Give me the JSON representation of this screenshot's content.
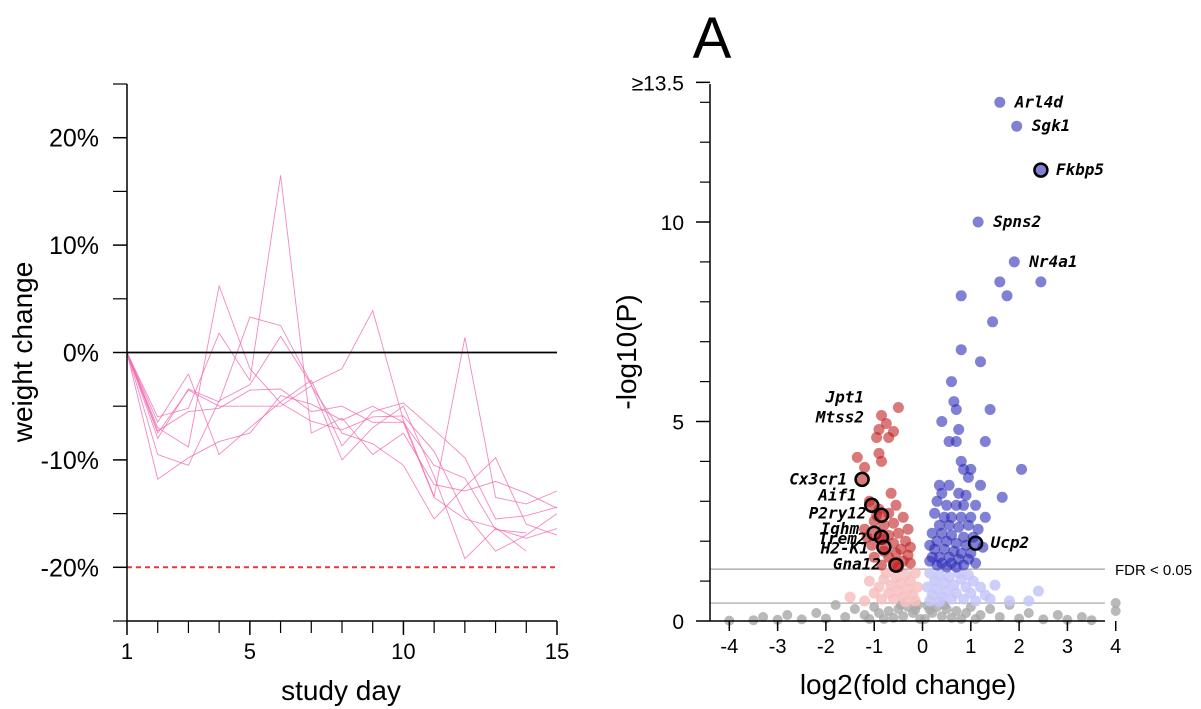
{
  "panel_label": "A",
  "chart_data": [
    {
      "type": "line",
      "xlabel": "study day",
      "ylabel": "weight change",
      "xlim": [
        1,
        15
      ],
      "ylim": [
        -25,
        25
      ],
      "x_ticks": [
        1,
        5,
        10,
        15
      ],
      "x_minor_ticks": [
        2,
        3,
        4,
        6,
        7,
        8,
        9,
        11,
        12,
        13,
        14
      ],
      "y_ticks": [
        {
          "value": 20,
          "label": "20%"
        },
        {
          "value": 10,
          "label": "10%"
        },
        {
          "value": 0,
          "label": "0%"
        },
        {
          "value": -10,
          "label": "-10%"
        },
        {
          "value": -20,
          "label": "-20%"
        }
      ],
      "y_minor_ticks": [
        25,
        15,
        5,
        -5,
        -15,
        -25
      ],
      "reference_lines": [
        {
          "value": 0,
          "color": "#000000",
          "style": "solid"
        },
        {
          "value": -20,
          "color": "#e53935",
          "style": "dashed"
        }
      ],
      "series_color": "#f06ab2",
      "x": [
        1,
        2,
        3,
        4,
        5,
        6,
        7,
        8,
        9,
        10,
        11,
        12,
        13,
        14,
        15
      ],
      "series": [
        {
          "values": [
            0,
            -11.8,
            -9.8,
            -8.3,
            -7.5,
            -4.0,
            -4.8,
            -6.3,
            -5.0,
            -6.5,
            -10.5,
            -11.7,
            -16.5,
            -16.8,
            null
          ]
        },
        {
          "values": [
            0,
            -7.0,
            -8.8,
            6.2,
            -1.5,
            -4.7,
            -6.4,
            -7.2,
            -6.0,
            -5.9,
            -9.2,
            -15.0,
            -18.5,
            -17.0,
            -15.0
          ]
        },
        {
          "values": [
            0,
            -9.5,
            -10.5,
            -4.5,
            -3.0,
            1.5,
            -3.0,
            -10.0,
            -7.0,
            -5.0,
            -11.5,
            -19.2,
            -16.4,
            -17.3,
            -16.4
          ]
        },
        {
          "values": [
            0,
            -6.5,
            -2.0,
            -9.5,
            -7.0,
            -4.6,
            -2.6,
            -8.7,
            -5.5,
            -4.7,
            -7.2,
            -9.8,
            -15.5,
            -15.2,
            -14.4
          ]
        },
        {
          "values": [
            0,
            -8.0,
            -3.4,
            -4.6,
            3.3,
            2.5,
            -2.9,
            -1.5,
            3.9,
            -6.3,
            -13.4,
            1.4,
            -13.5,
            -14.1,
            -12.9
          ]
        },
        {
          "values": [
            0,
            -6.0,
            -5.2,
            1.8,
            -2.6,
            16.5,
            -7.5,
            -6.1,
            -9.5,
            -7.5,
            -12.3,
            -12.9,
            -12.0,
            -13.1,
            -14.5
          ]
        },
        {
          "values": [
            0,
            -7.5,
            -3.5,
            -5.0,
            -5.0,
            -5.0,
            -3.1,
            -7.5,
            -8.5,
            -10.5,
            -15.5,
            -12.5,
            -9.8,
            -16.0,
            -17.0
          ]
        },
        {
          "values": [
            0,
            -7.3,
            -5.5,
            -5.2,
            -3.5,
            -3.4,
            -5.5,
            -5.0,
            -6.5,
            -6.5,
            -13.5,
            -15.5,
            -16.3,
            -18.5,
            null
          ]
        }
      ]
    },
    {
      "type": "scatter",
      "xlabel": "log2(fold change)",
      "ylabel": "-log10(P)",
      "xlim": [
        -4.4,
        4.2
      ],
      "ylim": [
        0,
        13.8
      ],
      "x_ticks": [
        -4,
        -3,
        -2,
        -1,
        0,
        1,
        2,
        3,
        4
      ],
      "y_ticks": [
        {
          "value": 0,
          "label": "0"
        },
        {
          "value": 5,
          "label": "5"
        },
        {
          "value": 10,
          "label": "10"
        },
        {
          "value": 13.5,
          "label": "≥13.5"
        }
      ],
      "y_minor_ticks": [
        1,
        2,
        3,
        4,
        6,
        7,
        8,
        9,
        11,
        12,
        13
      ],
      "threshold_lines": [
        {
          "value": 1.3,
          "label": "FDR < 0.05",
          "color": "#a0a0a0"
        },
        {
          "value": 0.45,
          "label": "",
          "color": "#a0a0a0"
        }
      ],
      "colors": {
        "up_significant": "#2b2bb8",
        "down_significant": "#bf1f1f",
        "up_nominal": "#c4c6f8",
        "down_nominal": "#f7c0c0",
        "not_significant": "#a8a8a8",
        "highlight_ring": "#000000"
      },
      "points_up_significant": [
        [
          1.6,
          13.0
        ],
        [
          1.95,
          12.4
        ],
        [
          1.15,
          10.0
        ],
        [
          1.9,
          9.0
        ],
        [
          2.45,
          8.5
        ],
        [
          1.6,
          8.5
        ],
        [
          1.75,
          8.15
        ],
        [
          0.8,
          8.15
        ],
        [
          1.45,
          7.5
        ],
        [
          0.8,
          6.8
        ],
        [
          1.2,
          6.5
        ],
        [
          0.6,
          6.0
        ],
        [
          0.65,
          5.5
        ],
        [
          0.7,
          5.3
        ],
        [
          1.4,
          5.3
        ],
        [
          0.4,
          5.0
        ],
        [
          0.75,
          4.8
        ],
        [
          0.55,
          4.5
        ],
        [
          0.7,
          4.5
        ],
        [
          1.3,
          4.5
        ],
        [
          0.8,
          4.0
        ],
        [
          0.85,
          3.8
        ],
        [
          1.0,
          3.8
        ],
        [
          2.05,
          3.8
        ],
        [
          0.95,
          3.6
        ],
        [
          0.35,
          3.4
        ],
        [
          0.55,
          3.4
        ],
        [
          1.2,
          3.4
        ],
        [
          0.4,
          3.2
        ],
        [
          0.75,
          3.2
        ],
        [
          0.9,
          3.15
        ],
        [
          1.65,
          3.1
        ],
        [
          0.3,
          3.0
        ],
        [
          0.5,
          2.9
        ],
        [
          0.7,
          2.9
        ],
        [
          0.85,
          2.9
        ],
        [
          1.1,
          2.9
        ],
        [
          0.25,
          2.7
        ],
        [
          0.45,
          2.6
        ],
        [
          0.6,
          2.6
        ],
        [
          0.8,
          2.6
        ],
        [
          1.0,
          2.6
        ],
        [
          1.3,
          2.6
        ],
        [
          0.35,
          2.4
        ],
        [
          0.55,
          2.4
        ],
        [
          0.75,
          2.35
        ],
        [
          0.95,
          2.4
        ],
        [
          1.15,
          2.3
        ],
        [
          0.2,
          2.2
        ],
        [
          0.4,
          2.2
        ],
        [
          0.6,
          2.15
        ],
        [
          0.85,
          2.1
        ],
        [
          1.05,
          2.1
        ],
        [
          0.3,
          2.0
        ],
        [
          0.5,
          2.0
        ],
        [
          0.7,
          1.95
        ],
        [
          0.9,
          1.9
        ],
        [
          1.25,
          1.85
        ],
        [
          0.15,
          1.9
        ],
        [
          0.25,
          1.8
        ],
        [
          0.45,
          1.8
        ],
        [
          0.65,
          1.75
        ],
        [
          0.8,
          1.7
        ],
        [
          1.0,
          1.7
        ],
        [
          0.2,
          1.6
        ],
        [
          0.35,
          1.6
        ],
        [
          0.55,
          1.6
        ],
        [
          0.75,
          1.55
        ],
        [
          0.95,
          1.55
        ],
        [
          0.15,
          1.5
        ],
        [
          0.4,
          1.45
        ],
        [
          0.6,
          1.45
        ],
        [
          0.85,
          1.4
        ],
        [
          1.1,
          1.45
        ],
        [
          0.3,
          1.4
        ],
        [
          0.5,
          1.35
        ],
        [
          0.7,
          1.35
        ]
      ],
      "points_down_significant": [
        [
          -0.5,
          5.35
        ],
        [
          -0.85,
          5.15
        ],
        [
          -0.75,
          4.95
        ],
        [
          -0.9,
          4.8
        ],
        [
          -0.6,
          4.75
        ],
        [
          -0.7,
          4.6
        ],
        [
          -0.95,
          4.6
        ],
        [
          -0.9,
          4.2
        ],
        [
          -1.35,
          4.1
        ],
        [
          -0.85,
          4.0
        ],
        [
          -1.2,
          3.85
        ],
        [
          -0.65,
          3.2
        ],
        [
          -1.1,
          3.0
        ],
        [
          -0.55,
          2.9
        ],
        [
          -0.9,
          2.8
        ],
        [
          -0.7,
          2.7
        ],
        [
          -0.4,
          2.6
        ],
        [
          -1.0,
          2.5
        ],
        [
          -0.6,
          2.45
        ],
        [
          -0.8,
          2.4
        ],
        [
          -0.3,
          2.3
        ],
        [
          -1.2,
          2.3
        ],
        [
          -0.5,
          2.2
        ],
        [
          -0.7,
          2.15
        ],
        [
          -0.9,
          2.1
        ],
        [
          -0.35,
          2.0
        ],
        [
          -0.6,
          1.95
        ],
        [
          -1.05,
          1.9
        ],
        [
          -0.25,
          1.85
        ],
        [
          -0.45,
          1.8
        ],
        [
          -0.8,
          1.75
        ],
        [
          -0.55,
          1.7
        ],
        [
          -0.3,
          1.65
        ],
        [
          -0.7,
          1.6
        ],
        [
          -1.0,
          1.6
        ],
        [
          -0.4,
          1.5
        ],
        [
          -0.6,
          1.45
        ],
        [
          -0.85,
          1.4
        ],
        [
          -0.25,
          1.45
        ],
        [
          -0.5,
          1.35
        ],
        [
          -1.15,
          2.1
        ],
        [
          -0.95,
          2.65
        ]
      ],
      "points_up_nominal": [
        [
          0.15,
          1.2
        ],
        [
          0.35,
          1.15
        ],
        [
          0.55,
          1.1
        ],
        [
          0.8,
          1.05
        ],
        [
          1.05,
          1.0
        ],
        [
          0.25,
          1.0
        ],
        [
          0.45,
          0.95
        ],
        [
          0.65,
          0.9
        ],
        [
          0.9,
          0.85
        ],
        [
          1.2,
          0.85
        ],
        [
          1.5,
          0.9
        ],
        [
          0.1,
          0.85
        ],
        [
          0.3,
          0.8
        ],
        [
          0.5,
          0.75
        ],
        [
          0.7,
          0.7
        ],
        [
          1.0,
          0.7
        ],
        [
          1.3,
          0.65
        ],
        [
          0.2,
          0.65
        ],
        [
          0.4,
          0.6
        ],
        [
          0.6,
          0.55
        ],
        [
          0.85,
          0.55
        ],
        [
          1.1,
          0.5
        ],
        [
          1.8,
          0.5
        ],
        [
          2.2,
          0.5
        ],
        [
          0.15,
          0.5
        ],
        [
          0.35,
          0.48
        ],
        [
          0.95,
          1.15
        ],
        [
          1.4,
          0.55
        ],
        [
          0.75,
          1.2
        ],
        [
          2.4,
          0.75
        ]
      ],
      "points_down_nominal": [
        [
          -0.15,
          1.2
        ],
        [
          -0.35,
          1.15
        ],
        [
          -0.55,
          1.1
        ],
        [
          -0.8,
          1.05
        ],
        [
          -0.25,
          1.0
        ],
        [
          -0.45,
          0.95
        ],
        [
          -0.65,
          0.9
        ],
        [
          -0.9,
          0.85
        ],
        [
          -0.1,
          0.85
        ],
        [
          -0.3,
          0.8
        ],
        [
          -0.5,
          0.75
        ],
        [
          -0.7,
          0.7
        ],
        [
          -1.0,
          0.7
        ],
        [
          -0.2,
          0.65
        ],
        [
          -0.4,
          0.6
        ],
        [
          -0.6,
          0.55
        ],
        [
          -0.85,
          0.55
        ],
        [
          -1.2,
          0.5
        ],
        [
          -0.15,
          0.5
        ],
        [
          -0.35,
          0.48
        ],
        [
          -1.5,
          0.6
        ],
        [
          -0.75,
          1.2
        ],
        [
          -1.1,
          1.0
        ]
      ],
      "points_not_significant": [
        [
          -0.1,
          0.4
        ],
        [
          0.1,
          0.38
        ],
        [
          -0.3,
          0.35
        ],
        [
          0.3,
          0.35
        ],
        [
          -0.5,
          0.3
        ],
        [
          0.5,
          0.3
        ],
        [
          -0.7,
          0.25
        ],
        [
          0.7,
          0.25
        ],
        [
          -0.9,
          0.2
        ],
        [
          0.9,
          0.2
        ],
        [
          -0.2,
          0.2
        ],
        [
          0.2,
          0.2
        ],
        [
          -1.2,
          0.15
        ],
        [
          1.2,
          0.15
        ],
        [
          -0.4,
          0.12
        ],
        [
          0.4,
          0.12
        ],
        [
          -1.6,
          0.1
        ],
        [
          1.6,
          0.1
        ],
        [
          -0.6,
          0.08
        ],
        [
          0.6,
          0.08
        ],
        [
          -2.0,
          0.06
        ],
        [
          2.0,
          0.06
        ],
        [
          -0.8,
          0.05
        ],
        [
          0.8,
          0.05
        ],
        [
          -2.5,
          0.04
        ],
        [
          2.5,
          0.04
        ],
        [
          -3.0,
          0.03
        ],
        [
          3.0,
          0.03
        ],
        [
          -3.5,
          0.02
        ],
        [
          3.5,
          0.02
        ],
        [
          -4.0,
          0.01
        ],
        [
          4.0,
          0.45
        ],
        [
          4.0,
          0.25
        ],
        [
          -0.05,
          0.05
        ],
        [
          0.05,
          0.05
        ],
        [
          -1.0,
          0.35
        ],
        [
          1.0,
          0.35
        ],
        [
          -1.4,
          0.3
        ],
        [
          1.4,
          0.3
        ],
        [
          -0.15,
          0.28
        ],
        [
          0.15,
          0.28
        ],
        [
          -2.2,
          0.2
        ],
        [
          2.2,
          0.2
        ],
        [
          -2.8,
          0.15
        ],
        [
          2.8,
          0.15
        ],
        [
          -1.8,
          0.4
        ],
        [
          1.8,
          0.4
        ],
        [
          -3.3,
          0.1
        ],
        [
          3.3,
          0.1
        ],
        [
          -0.45,
          0.4
        ],
        [
          0.45,
          0.4
        ],
        [
          -1.1,
          0.05
        ],
        [
          1.1,
          0.05
        ]
      ],
      "highlighted_points": [
        {
          "x": 2.45,
          "y": 11.3,
          "fill": "up"
        },
        {
          "x": -1.25,
          "y": 3.55,
          "fill": "down"
        },
        {
          "x": -1.05,
          "y": 2.9,
          "fill": "down"
        },
        {
          "x": -0.85,
          "y": 2.65,
          "fill": "down"
        },
        {
          "x": -1.0,
          "y": 2.2,
          "fill": "down"
        },
        {
          "x": -0.85,
          "y": 2.1,
          "fill": "down"
        },
        {
          "x": -0.8,
          "y": 1.85,
          "fill": "down"
        },
        {
          "x": -0.55,
          "y": 1.4,
          "fill": "down"
        },
        {
          "x": 1.1,
          "y": 1.95,
          "fill": "up"
        }
      ],
      "gene_labels": [
        {
          "text": "Arl4d",
          "x": 1.6,
          "y": 13.0,
          "side": "right"
        },
        {
          "text": "Sgk1",
          "x": 1.95,
          "y": 12.4,
          "side": "right"
        },
        {
          "text": "Fkbp5",
          "x": 2.45,
          "y": 11.3,
          "side": "right"
        },
        {
          "text": "Spns2",
          "x": 1.15,
          "y": 10.0,
          "side": "right"
        },
        {
          "text": "Nr4a1",
          "x": 1.9,
          "y": 9.0,
          "side": "right"
        },
        {
          "text": "Jpt1",
          "x": -0.9,
          "y": 5.6,
          "side": "left"
        },
        {
          "text": "Mtss2",
          "x": -0.9,
          "y": 5.1,
          "side": "left"
        },
        {
          "text": "Cx3cr1",
          "x": -1.25,
          "y": 3.55,
          "side": "left"
        },
        {
          "text": "Aif1",
          "x": -1.05,
          "y": 3.15,
          "side": "left"
        },
        {
          "text": "P2ry12",
          "x": -0.85,
          "y": 2.7,
          "side": "left"
        },
        {
          "text": "Ighm",
          "x": -1.0,
          "y": 2.3,
          "side": "left"
        },
        {
          "text": "Trem2",
          "x": -0.85,
          "y": 2.05,
          "side": "left"
        },
        {
          "text": "H2-K1",
          "x": -0.8,
          "y": 1.82,
          "side": "left"
        },
        {
          "text": "Gna12",
          "x": -0.55,
          "y": 1.42,
          "side": "left"
        },
        {
          "text": "Ucp2",
          "x": 1.1,
          "y": 1.95,
          "side": "right"
        }
      ]
    }
  ]
}
